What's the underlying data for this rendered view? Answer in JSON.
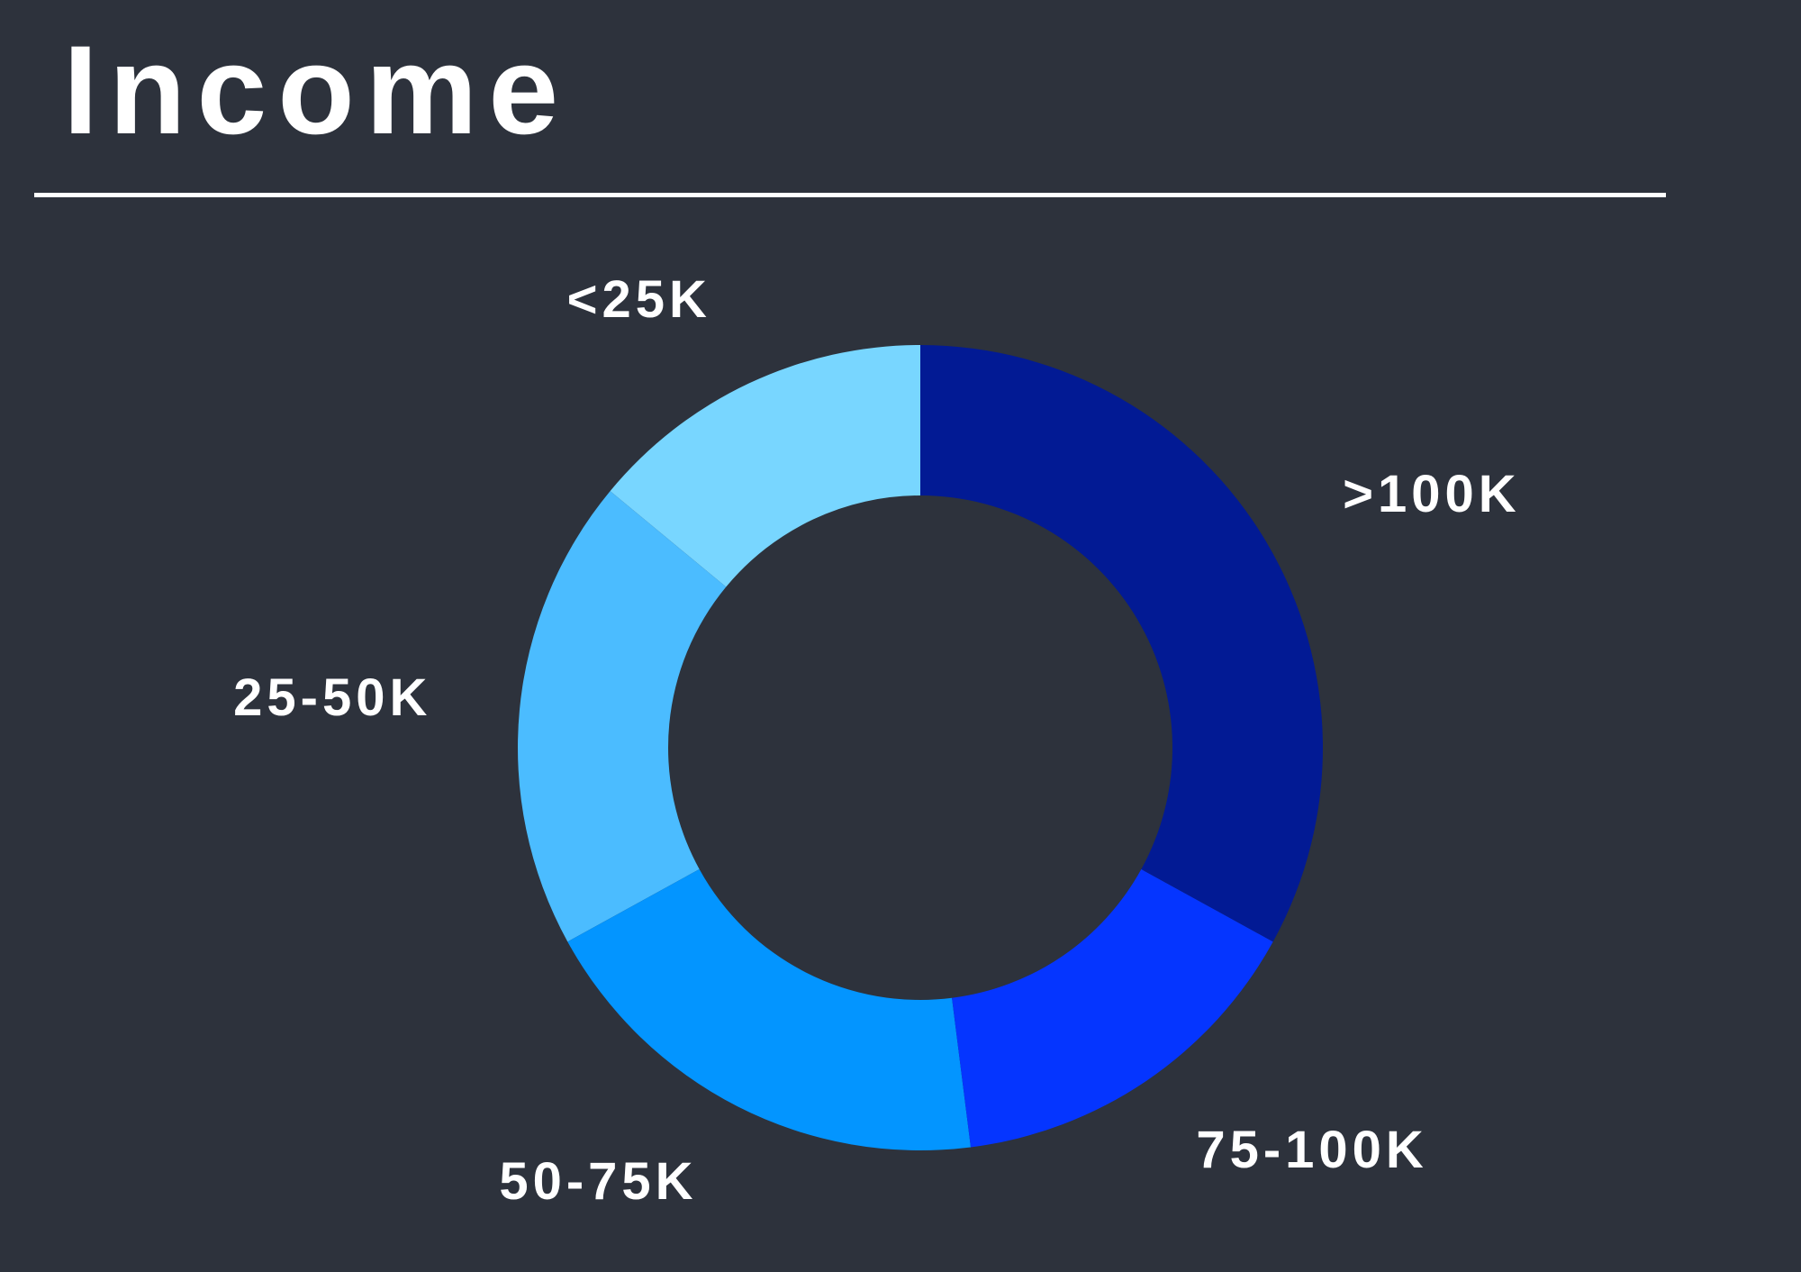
{
  "header": {
    "title": "Income"
  },
  "chart_data": {
    "type": "pie",
    "variant": "donut",
    "title": "Income",
    "categories": [
      "<25K",
      "25-50K",
      "50-75K",
      "75-100K",
      ">100K"
    ],
    "values": [
      14,
      19,
      19,
      15,
      33
    ],
    "unit": "%",
    "direction": "counterclockwise from top",
    "colors": [
      "#78d6ff",
      "#4bbcff",
      "#0395ff",
      "#0535ff",
      "#021a94"
    ],
    "label_color": "#ffffff",
    "background": "#2d323c"
  }
}
